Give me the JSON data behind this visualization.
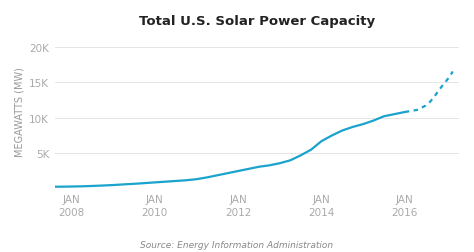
{
  "title": "Total U.S. Solar Power Capacity",
  "ylabel": "MEGAWATTS (MW)",
  "source": "Source: Energy Information Administration",
  "background_color": "#ffffff",
  "plot_bg_color": "#ffffff",
  "line_color": "#1aa3cc",
  "dotted_color": "#1aa3cc",
  "yticks": [
    0,
    5000,
    10000,
    15000,
    20000
  ],
  "ytick_labels": [
    "",
    "5K",
    "10K",
    "15K",
    "20K"
  ],
  "xlim_start": 2007.6,
  "xlim_end": 2017.3,
  "ylim": [
    0,
    22000
  ],
  "solid_data": {
    "years": [
      2007.0,
      2007.25,
      2007.5,
      2007.75,
      2008.0,
      2008.25,
      2008.5,
      2008.75,
      2009.0,
      2009.25,
      2009.5,
      2009.75,
      2010.0,
      2010.25,
      2010.5,
      2010.75,
      2011.0,
      2011.25,
      2011.5,
      2011.75,
      2012.0,
      2012.25,
      2012.5,
      2012.75,
      2013.0,
      2013.25,
      2013.5,
      2013.75,
      2014.0,
      2014.25,
      2014.5,
      2014.75,
      2015.0,
      2015.25,
      2015.5,
      2015.75,
      2016.0
    ],
    "values": [
      270,
      280,
      290,
      300,
      320,
      350,
      400,
      460,
      530,
      620,
      700,
      800,
      900,
      1000,
      1100,
      1200,
      1350,
      1600,
      1900,
      2200,
      2500,
      2800,
      3100,
      3300,
      3600,
      4000,
      4700,
      5500,
      6700,
      7500,
      8200,
      8700,
      9100,
      9600,
      10200,
      10500,
      10800
    ]
  },
  "dotted_data": {
    "years": [
      2016.0,
      2016.1,
      2016.2,
      2016.3,
      2016.4,
      2016.5,
      2016.6,
      2016.7,
      2016.8,
      2016.9,
      2017.0,
      2017.05,
      2017.1,
      2017.15
    ],
    "values": [
      10800,
      10900,
      11000,
      11100,
      11400,
      11700,
      12200,
      12900,
      13700,
      14500,
      15200,
      15600,
      16000,
      16500
    ]
  },
  "xtick_positions": [
    2008,
    2010,
    2012,
    2014,
    2016
  ],
  "xtick_labels": [
    "JAN\n2008",
    "JAN\n2010",
    "JAN\n2012",
    "JAN\n2014",
    "JAN\n2016"
  ],
  "grid_color": "#e0e0e0",
  "tick_color": "#aaaaaa",
  "spine_color": "#cccccc",
  "xaxis_dot_color": "#cccccc",
  "title_color": "#222222",
  "label_color": "#999999",
  "source_color": "#888888"
}
